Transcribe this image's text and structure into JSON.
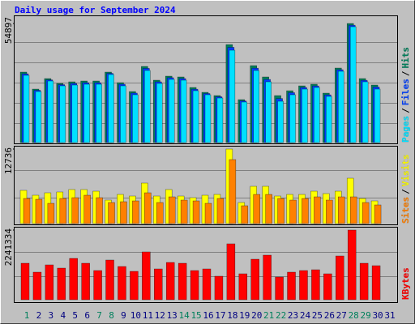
{
  "legend_separator": "/",
  "chart_data": [
    {
      "type": "bar",
      "title": "Daily usage for September 2024",
      "ylim": [
        0,
        54897
      ],
      "yticks": [
        54897
      ],
      "series": [
        {
          "name": "Hits",
          "color": "#00805c",
          "values": [
            32486,
            24644,
            29499,
            27258,
            28005,
            28378,
            28378,
            32486,
            27632,
            23524,
            35100,
            28752,
            30619,
            30245,
            25391,
            23151,
            21657,
            45181,
            19790,
            35473,
            30245,
            21657,
            23898,
            26138,
            26885,
            22777,
            34353,
            54897,
            29499,
            26511,
            null
          ]
        },
        {
          "name": "Files",
          "color": "#0040ff",
          "values": [
            31700,
            24100,
            28900,
            26700,
            27250,
            27600,
            27600,
            31900,
            26900,
            22800,
            34200,
            28000,
            29900,
            29500,
            24600,
            22600,
            21100,
            43900,
            19200,
            34300,
            29100,
            20300,
            23000,
            25400,
            26100,
            22000,
            33600,
            54100,
            28700,
            25600,
            null
          ]
        },
        {
          "name": "Pages",
          "color": "#00e0ff",
          "values": [
            30992,
            23524,
            28378,
            26138,
            26511,
            26885,
            26885,
            31366,
            26138,
            22031,
            33233,
            27258,
            29125,
            28752,
            23898,
            22031,
            20537,
            42568,
            18670,
            33233,
            28005,
            19043,
            22031,
            24644,
            25391,
            21284,
            32859,
            53396,
            28005,
            24644,
            null
          ]
        }
      ]
    },
    {
      "type": "bar",
      "ylim": [
        0,
        12736
      ],
      "yticks": [
        12736
      ],
      "series": [
        {
          "name": "Visits",
          "color": "#ffff00",
          "values": [
            5674,
            4844,
            5259,
            5398,
            5813,
            5813,
            5536,
            4014,
            4982,
            4706,
            6920,
            4706,
            5813,
            4706,
            4429,
            4844,
            4982,
            12736,
            3598,
            6366,
            6366,
            4706,
            4982,
            4982,
            5536,
            5121,
            5536,
            7750,
            4290,
            3875,
            null
          ]
        },
        {
          "name": "Sites",
          "color": "#ff8000",
          "values": [
            4290,
            4152,
            3460,
            4290,
            4429,
            4844,
            4429,
            3598,
            3737,
            3875,
            5259,
            3598,
            4567,
            4014,
            3875,
            3460,
            4290,
            10934,
            3045,
            4982,
            4982,
            4290,
            4014,
            4290,
            4567,
            4014,
            4567,
            4567,
            3598,
            3183,
            null
          ]
        }
      ]
    },
    {
      "type": "bar",
      "ylim": [
        0,
        2241334
      ],
      "yticks": [
        2241334
      ],
      "categories": [
        "1",
        "2",
        "3",
        "4",
        "5",
        "6",
        "7",
        "8",
        "9",
        "10",
        "11",
        "12",
        "13",
        "14",
        "15",
        "16",
        "17",
        "18",
        "19",
        "20",
        "21",
        "22",
        "23",
        "24",
        "25",
        "26",
        "27",
        "28",
        "29",
        "30",
        "31"
      ],
      "category_colors": [
        "#00805c",
        "#000080",
        "#000080",
        "#000080",
        "#000080",
        "#000080",
        "#00805c",
        "#00805c",
        "#000080",
        "#000080",
        "#000080",
        "#000080",
        "#000080",
        "#00805c",
        "#00805c",
        "#000080",
        "#000080",
        "#000080",
        "#000080",
        "#000080",
        "#00805c",
        "#00805c",
        "#000080",
        "#000080",
        "#000080",
        "#000080",
        "#000080",
        "#00805c",
        "#00805c",
        "#000080",
        "#000080"
      ],
      "series": [
        {
          "name": "KBytes",
          "color": "#ff0000",
          "values": [
            1172790,
            886108,
            1120666,
            1016418,
            1329162,
            1172790,
            938232,
            1277038,
            1068542,
            912170,
            1537658,
            990356,
            1198852,
            1172790,
            938232,
            990356,
            755798,
            1798278,
            833984,
            1303100,
            1433410,
            729736,
            886108,
            938232,
            964294,
            833984,
            1407348,
            2241334,
            1172790,
            1094604,
            null
          ]
        }
      ]
    }
  ]
}
